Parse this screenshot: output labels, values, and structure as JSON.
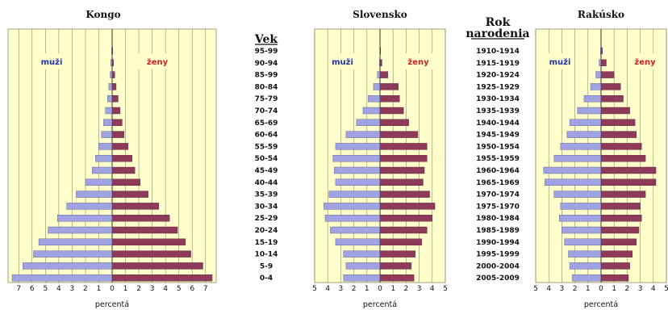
{
  "colors": {
    "male": "#9fa3e3",
    "female": "#8e3a5b",
    "bg": "#ffffcc",
    "grid": "#8a8a6a",
    "center": "#333333"
  },
  "row_headers": {
    "age": "Vek",
    "birth_line1": "Rok",
    "birth_line2": "narodenia"
  },
  "age_groups": [
    "95-99",
    "90-94",
    "85-99",
    "80-84",
    "75-79",
    "70-74",
    "65-69",
    "60-64",
    "55-59",
    "50-54",
    "45-49",
    "40-44",
    "35-39",
    "30-34",
    "25-29",
    "20-24",
    "15-19",
    "10-14",
    "5-9",
    "0-4"
  ],
  "birth_years": [
    "1910-1914",
    "1915-1919",
    "1920-1924",
    "1925-1929",
    "1930-1934",
    "1935-1939",
    "1940-1944",
    "1945-1949",
    "1950-1954",
    "1955-1959",
    "1960-1964",
    "1965-1969",
    "1970-1974",
    "1975-1970",
    "1980-1984",
    "1985-1989",
    "1990-1994",
    "1995-1999",
    "2000-2004",
    "2005-2009"
  ],
  "chart_data": [
    {
      "type": "bar",
      "orientation": "horizontal-pyramid",
      "title": "Kongo",
      "xlabel": "percentá",
      "male_label": "muži",
      "female_label": "ženy",
      "xlim": [
        -7.8,
        7.8
      ],
      "ticks": [
        -7,
        -6,
        -5,
        -4,
        -3,
        -2,
        -1,
        0,
        1,
        2,
        3,
        4,
        5,
        6,
        7
      ],
      "tick_labels": [
        "7",
        "6",
        "5",
        "4",
        "3",
        "2",
        "1",
        "0",
        "1",
        "2",
        "3",
        "4",
        "5",
        "6",
        "7"
      ],
      "categories": [
        "95-99",
        "90-94",
        "85-99",
        "80-84",
        "75-79",
        "70-74",
        "65-69",
        "60-64",
        "55-59",
        "50-54",
        "45-49",
        "40-44",
        "35-39",
        "30-34",
        "25-29",
        "20-24",
        "15-19",
        "10-14",
        "5-9",
        "0-4"
      ],
      "series": [
        {
          "name": "muži",
          "values": [
            0.05,
            0.1,
            0.15,
            0.25,
            0.35,
            0.5,
            0.65,
            0.8,
            1.0,
            1.25,
            1.5,
            2.0,
            2.7,
            3.4,
            4.1,
            4.8,
            5.5,
            5.9,
            6.7,
            7.5
          ]
        },
        {
          "name": "ženy",
          "values": [
            0.05,
            0.1,
            0.2,
            0.3,
            0.45,
            0.6,
            0.75,
            0.9,
            1.2,
            1.5,
            1.7,
            2.1,
            2.7,
            3.5,
            4.3,
            4.9,
            5.5,
            5.9,
            6.8,
            7.5
          ]
        }
      ]
    },
    {
      "type": "bar",
      "orientation": "horizontal-pyramid",
      "title": "Slovensko",
      "xlabel": "percentá",
      "male_label": "muži",
      "female_label": "ženy",
      "xlim": [
        -5,
        5
      ],
      "ticks": [
        -5,
        -4,
        -3,
        -2,
        -1,
        0,
        1,
        2,
        3,
        4,
        5
      ],
      "tick_labels": [
        "5",
        "4",
        "3",
        "2",
        "1",
        "0",
        "1",
        "2",
        "3",
        "4",
        "5"
      ],
      "categories": [
        "95-99",
        "90-94",
        "85-99",
        "80-84",
        "75-79",
        "70-74",
        "65-69",
        "60-64",
        "55-59",
        "50-54",
        "45-49",
        "40-44",
        "35-39",
        "30-34",
        "25-29",
        "20-24",
        "15-19",
        "10-14",
        "5-9",
        "0-4"
      ],
      "series": [
        {
          "name": "muži",
          "values": [
            0.0,
            0.05,
            0.2,
            0.5,
            0.9,
            1.3,
            1.8,
            2.6,
            3.4,
            3.6,
            3.5,
            3.4,
            3.9,
            4.3,
            4.2,
            3.8,
            3.4,
            2.8,
            2.6,
            2.8
          ]
        },
        {
          "name": "ženy",
          "values": [
            0.05,
            0.15,
            0.6,
            1.4,
            1.5,
            1.8,
            2.2,
            2.9,
            3.6,
            3.6,
            3.4,
            3.3,
            3.8,
            4.2,
            4.0,
            3.6,
            3.2,
            2.7,
            2.4,
            2.6
          ]
        }
      ]
    },
    {
      "type": "bar",
      "orientation": "horizontal-pyramid",
      "title": "Rakúsko",
      "xlabel": "percentá",
      "male_label": "muži",
      "female_label": "ženy",
      "xlim": [
        -5,
        5
      ],
      "ticks": [
        -5,
        -4,
        -3,
        -2,
        -1,
        0,
        1,
        2,
        3,
        4,
        5
      ],
      "tick_labels": [
        "5",
        "4",
        "3",
        "2",
        "1",
        "0",
        "1",
        "2",
        "3",
        "4",
        "5"
      ],
      "categories": [
        "95-99",
        "90-94",
        "85-99",
        "80-84",
        "75-79",
        "70-74",
        "65-69",
        "60-64",
        "55-59",
        "50-54",
        "45-49",
        "40-44",
        "35-39",
        "30-34",
        "25-29",
        "20-24",
        "15-19",
        "10-14",
        "5-9",
        "0-4"
      ],
      "series": [
        {
          "name": "muži",
          "values": [
            0.05,
            0.15,
            0.4,
            0.8,
            1.3,
            1.8,
            2.4,
            2.6,
            3.1,
            3.6,
            4.4,
            4.3,
            3.6,
            3.1,
            3.2,
            3.0,
            2.8,
            2.5,
            2.4,
            2.2
          ]
        },
        {
          "name": "ženy",
          "values": [
            0.1,
            0.4,
            1.0,
            1.5,
            1.7,
            2.2,
            2.6,
            2.7,
            3.1,
            3.4,
            4.2,
            4.2,
            3.4,
            3.0,
            3.1,
            2.9,
            2.7,
            2.4,
            2.2,
            2.1
          ]
        }
      ]
    }
  ]
}
